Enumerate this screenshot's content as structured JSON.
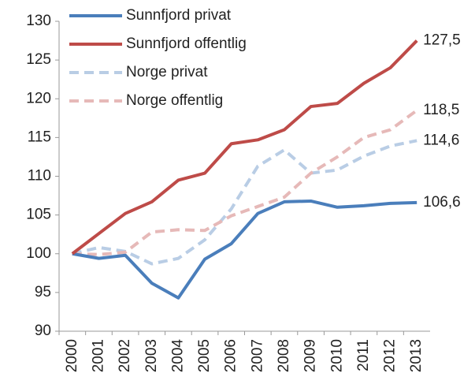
{
  "chart_data": {
    "type": "line",
    "x": [
      2000,
      2001,
      2002,
      2003,
      2004,
      2005,
      2006,
      2007,
      2008,
      2009,
      2010,
      2011,
      2012,
      2013
    ],
    "series": [
      {
        "name": "Sunnfjord privat",
        "color": "#4a7ebb",
        "dashed": false,
        "values": [
          100,
          99.4,
          99.8,
          96.2,
          94.3,
          99.3,
          101.3,
          105.2,
          106.7,
          106.8,
          106.0,
          106.2,
          106.5,
          106.6
        ],
        "value_labels": [
          null,
          null,
          null,
          null,
          null,
          null,
          null,
          null,
          null,
          null,
          null,
          null,
          null,
          "106,6"
        ]
      },
      {
        "name": "Sunnfjord offentlig",
        "color": "#be4b48",
        "dashed": false,
        "values": [
          100,
          102.6,
          105.2,
          106.7,
          109.5,
          110.4,
          114.2,
          114.7,
          116.0,
          119.0,
          119.4,
          122.0,
          124.0,
          127.5
        ],
        "value_labels": [
          null,
          null,
          null,
          null,
          null,
          null,
          null,
          null,
          null,
          null,
          null,
          null,
          null,
          "127,5"
        ]
      },
      {
        "name": "Norge privat",
        "color": "#b9cde5",
        "dashed": true,
        "values": [
          100,
          100.8,
          100.3,
          98.7,
          99.4,
          101.8,
          105.8,
          111.3,
          113.4,
          110.4,
          110.8,
          112.6,
          113.9,
          114.6
        ],
        "value_labels": [
          null,
          null,
          null,
          null,
          null,
          null,
          null,
          null,
          null,
          null,
          null,
          null,
          null,
          "114,6"
        ]
      },
      {
        "name": "Norge offentlig",
        "color": "#e6b9b8",
        "dashed": true,
        "values": [
          100,
          99.9,
          100.2,
          102.8,
          103.1,
          103.0,
          104.9,
          106.1,
          107.3,
          110.4,
          112.5,
          115.0,
          116.0,
          118.5
        ],
        "value_labels": [
          null,
          null,
          null,
          null,
          null,
          null,
          null,
          null,
          null,
          null,
          null,
          null,
          null,
          "118,5"
        ]
      }
    ],
    "xlim": [
      2000,
      2013
    ],
    "ylim": [
      90,
      130
    ],
    "yticks": [
      90,
      95,
      100,
      105,
      110,
      115,
      120,
      125,
      130
    ],
    "grid": false,
    "legend": "top-left"
  }
}
